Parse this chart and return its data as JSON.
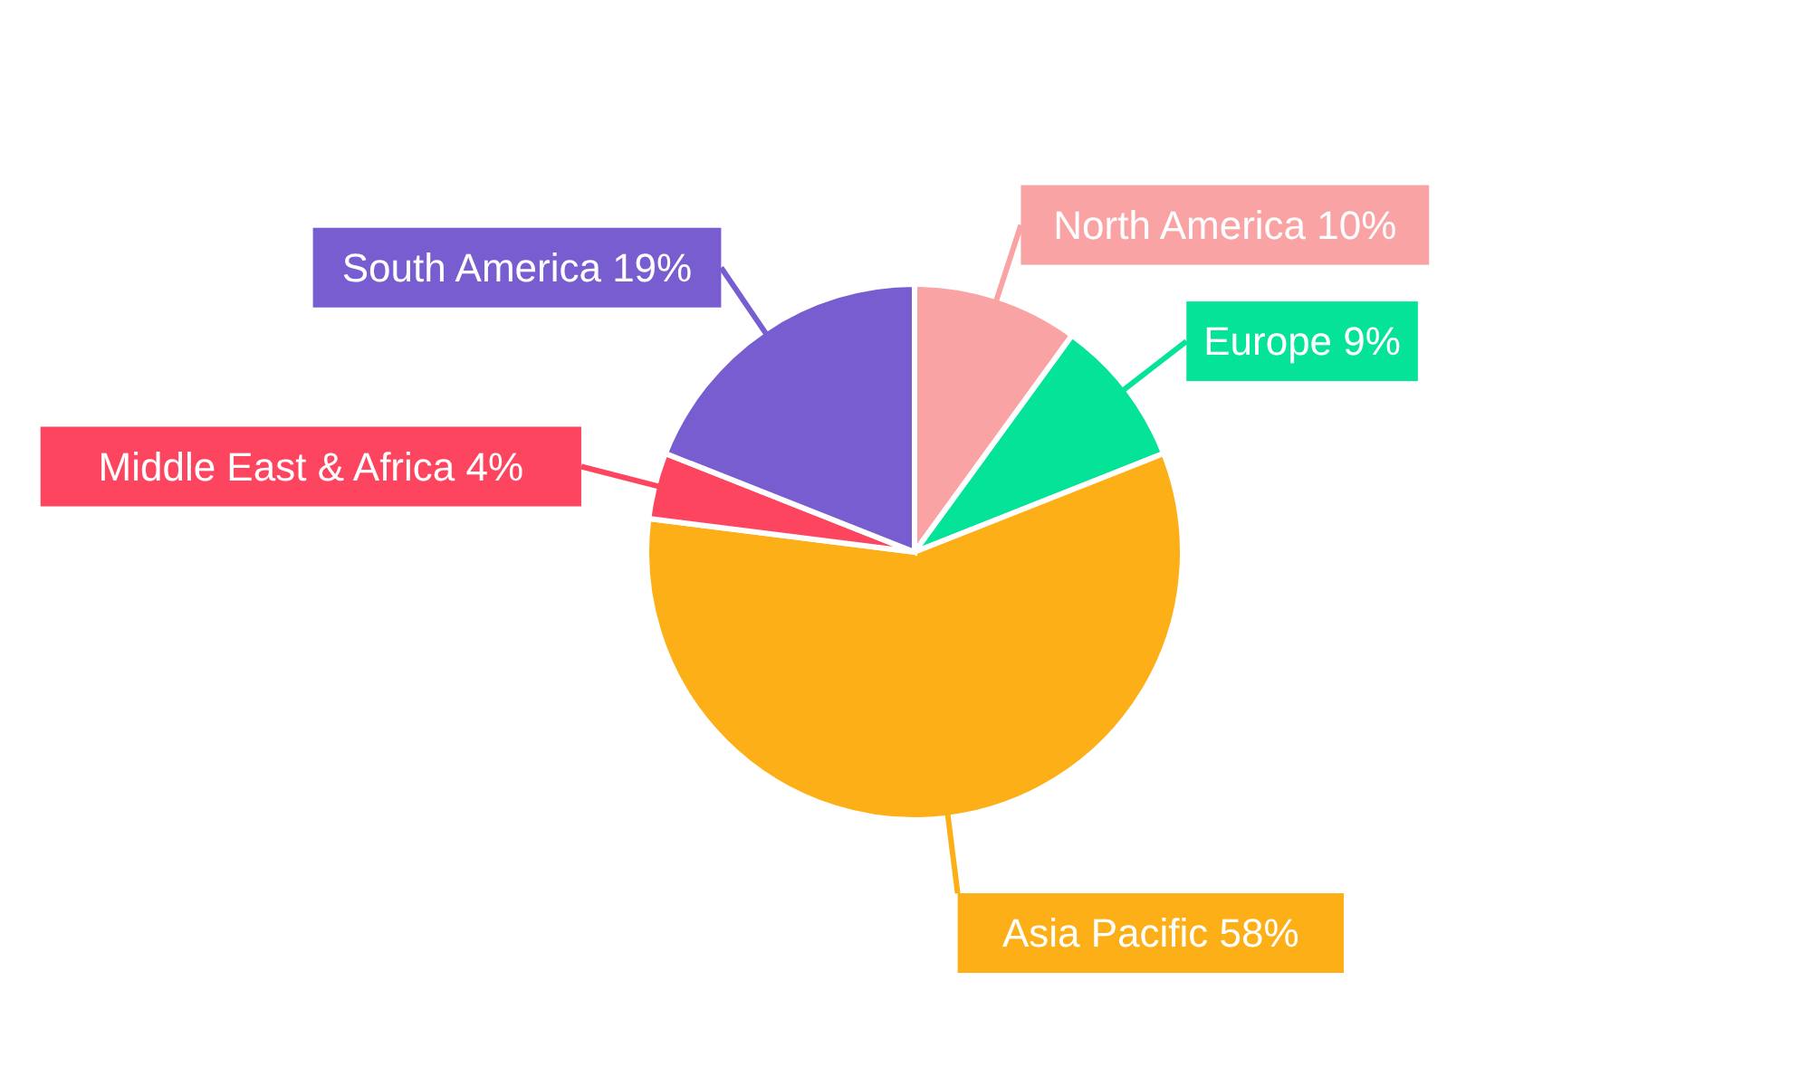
{
  "chart_data": {
    "type": "pie",
    "categories": [
      "North America",
      "Europe",
      "Asia Pacific",
      "Middle East & Africa",
      "South America"
    ],
    "values": [
      10,
      9,
      58,
      4,
      19
    ],
    "colors": [
      "#f9a3a4",
      "#05e399",
      "#fdaf17",
      "#fd4560",
      "#775dd0"
    ],
    "value_labels": [
      "10%",
      "9%",
      "58%",
      "4%",
      "19%"
    ]
  }
}
